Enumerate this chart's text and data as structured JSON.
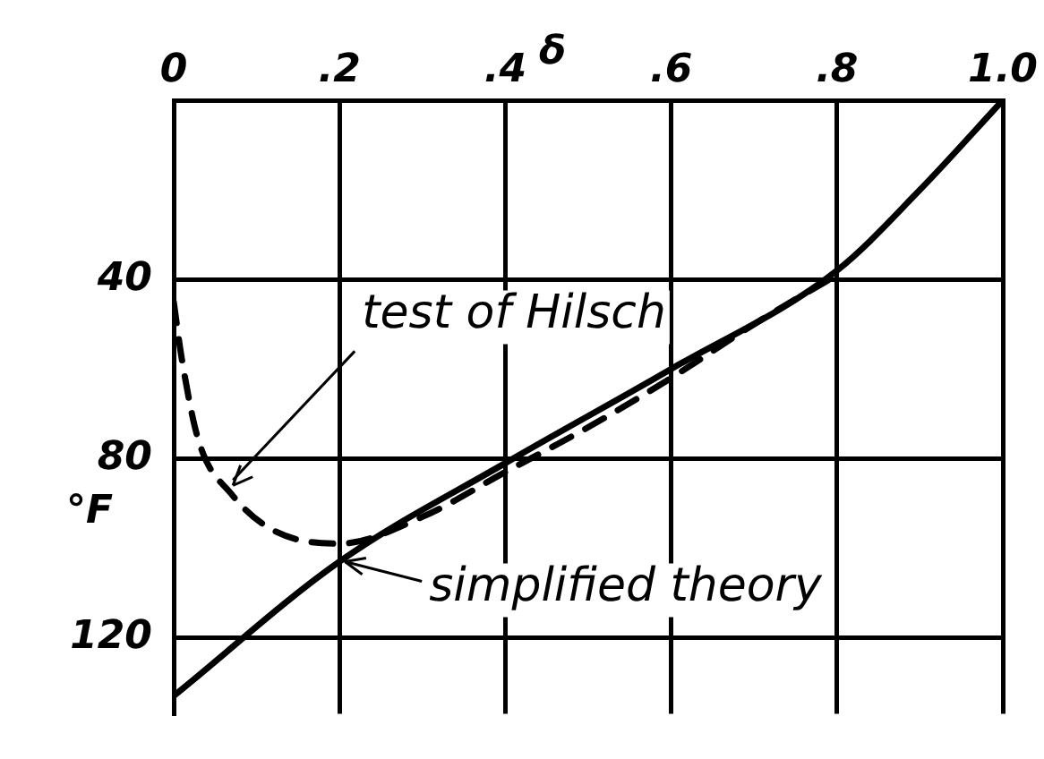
{
  "chart_data": {
    "type": "line",
    "xlabel": "δ",
    "ylabel": "°F",
    "xlim": [
      0,
      1
    ],
    "xticks": [
      0,
      {
        "value": 0.2,
        "label": ".2"
      },
      {
        "value": 0.4,
        "label": ".4"
      },
      {
        "value": 0.6,
        "label": ".6"
      },
      {
        "value": 0.8,
        "label": ".8"
      },
      {
        "value": 1,
        "label": "1.0"
      }
    ],
    "ylim": [
      137,
      0
    ],
    "yticks": [
      40,
      80,
      120
    ],
    "grid": true,
    "legend": false,
    "marker": "none",
    "series": [
      {
        "color": "#000000",
        "line_style": "solid",
        "x": [
          0,
          0.2,
          0.4,
          0.6,
          0.8,
          0.9,
          1
        ],
        "values": [
          133,
          103,
          81,
          60,
          38,
          20,
          0
        ]
      },
      {
        "color": "#000000",
        "line_style": "dashed",
        "x": [
          0,
          0.01,
          0.03,
          0.07,
          0.12,
          0.2,
          0.3,
          0.4,
          0.5,
          0.6,
          0.7,
          0.8
        ],
        "values": [
          45,
          58,
          76,
          88,
          96,
          99,
          93,
          83,
          73,
          62,
          50,
          39
        ]
      }
    ],
    "annotations": [
      {
        "text": "test of Hilsch",
        "x": 0.065,
        "y": 86
      },
      {
        "text": "simplified theory",
        "x": 0.2,
        "y": 103
      }
    ]
  }
}
